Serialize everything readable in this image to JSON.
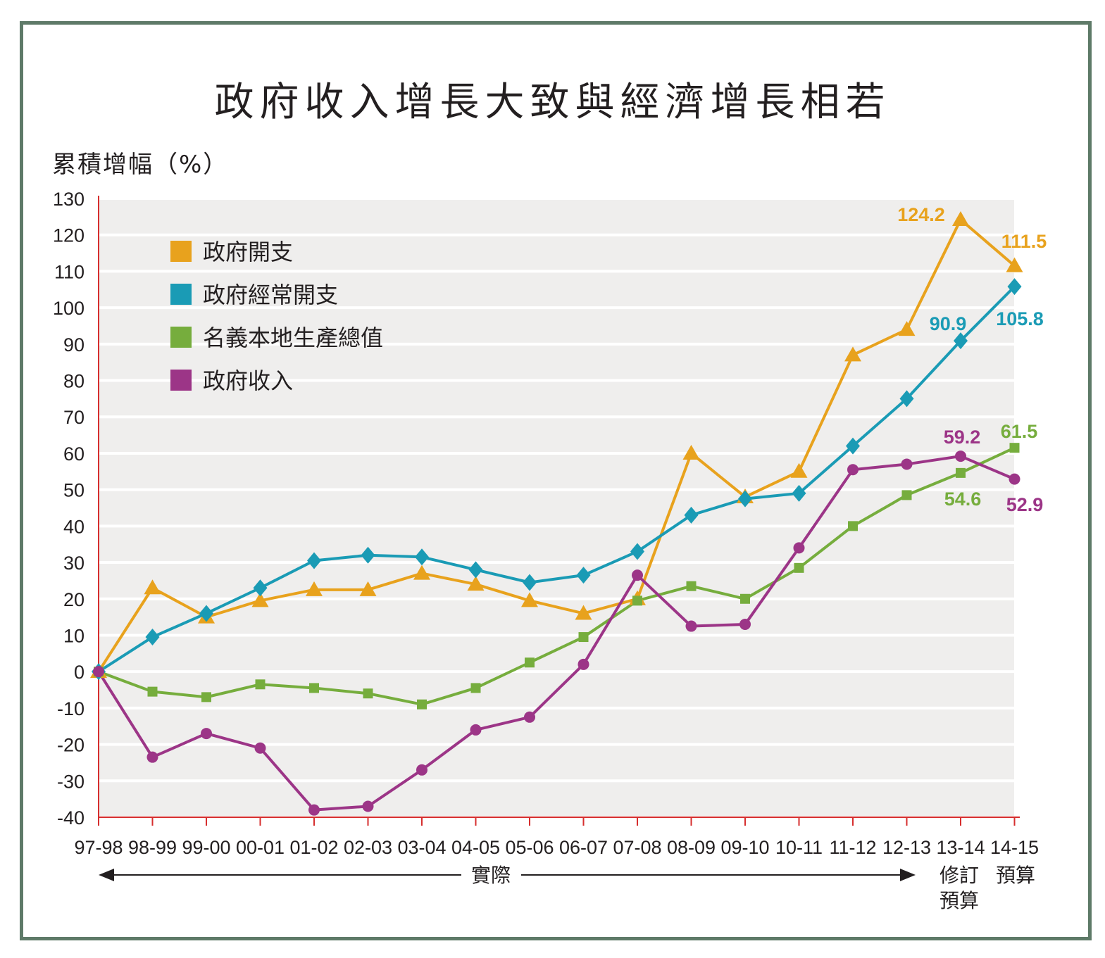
{
  "chart_data": {
    "type": "line",
    "title": "政府收入增長大致與經濟增長相若",
    "ylabel": "累積增幅（%）",
    "xlabel": "",
    "ylim": [
      -40,
      130
    ],
    "yticks": [
      130,
      120,
      110,
      100,
      90,
      80,
      70,
      60,
      50,
      40,
      30,
      20,
      10,
      0,
      -10,
      -20,
      -30,
      -40
    ],
    "grid": true,
    "legend_position": "top-left",
    "categories": [
      "97-98",
      "98-99",
      "99-00",
      "00-01",
      "01-02",
      "02-03",
      "03-04",
      "04-05",
      "05-06",
      "06-07",
      "07-08",
      "08-09",
      "09-10",
      "10-11",
      "11-12",
      "12-13",
      "13-14",
      "14-15"
    ],
    "series": [
      {
        "name": "政府開支",
        "color": "#e8a21d",
        "marker": "triangle",
        "values": [
          0,
          23,
          15,
          19.5,
          22.5,
          22.5,
          27,
          24,
          19.5,
          16,
          20,
          60,
          48,
          55,
          87,
          94,
          124.2,
          111.5
        ]
      },
      {
        "name": "政府經常開支",
        "color": "#1a9bb5",
        "marker": "diamond",
        "values": [
          0,
          9.5,
          16,
          23,
          30.5,
          32,
          31.5,
          28,
          24.5,
          26.5,
          33,
          43,
          47.5,
          49,
          62,
          75,
          90.9,
          105.8
        ]
      },
      {
        "name": "名義本地生產總值",
        "color": "#76ad3d",
        "marker": "square",
        "values": [
          0,
          -5.5,
          -7,
          -3.5,
          -4.5,
          -6,
          -9,
          -4.5,
          2.5,
          9.5,
          19.5,
          23.5,
          20,
          28.5,
          40,
          48.5,
          54.6,
          61.5
        ]
      },
      {
        "name": "政府收入",
        "color": "#9c3587",
        "marker": "circle",
        "values": [
          0,
          -23.5,
          -17,
          -21,
          -38,
          -37,
          -27,
          -16,
          -12.5,
          2,
          26.5,
          12.5,
          13,
          34,
          55.5,
          57,
          59.2,
          52.9
        ]
      }
    ],
    "data_labels": [
      {
        "text": "124.2",
        "color": "#e8a21d"
      },
      {
        "text": "111.5",
        "color": "#e8a21d"
      },
      {
        "text": "90.9",
        "color": "#1a9bb5"
      },
      {
        "text": "105.8",
        "color": "#1a9bb5"
      },
      {
        "text": "59.2",
        "color": "#9c3587"
      },
      {
        "text": "61.5",
        "color": "#76ad3d"
      },
      {
        "text": "54.6",
        "color": "#76ad3d"
      },
      {
        "text": "52.9",
        "color": "#9c3587"
      }
    ],
    "annotations": {
      "actual": "實際",
      "revised_estimate_line1": "修訂",
      "revised_estimate_line2": "預算",
      "estimate": "預算"
    },
    "colors": {
      "plot_background": "#efeeed",
      "axis": "#d62e2e",
      "frame": "#5e7a68"
    }
  }
}
